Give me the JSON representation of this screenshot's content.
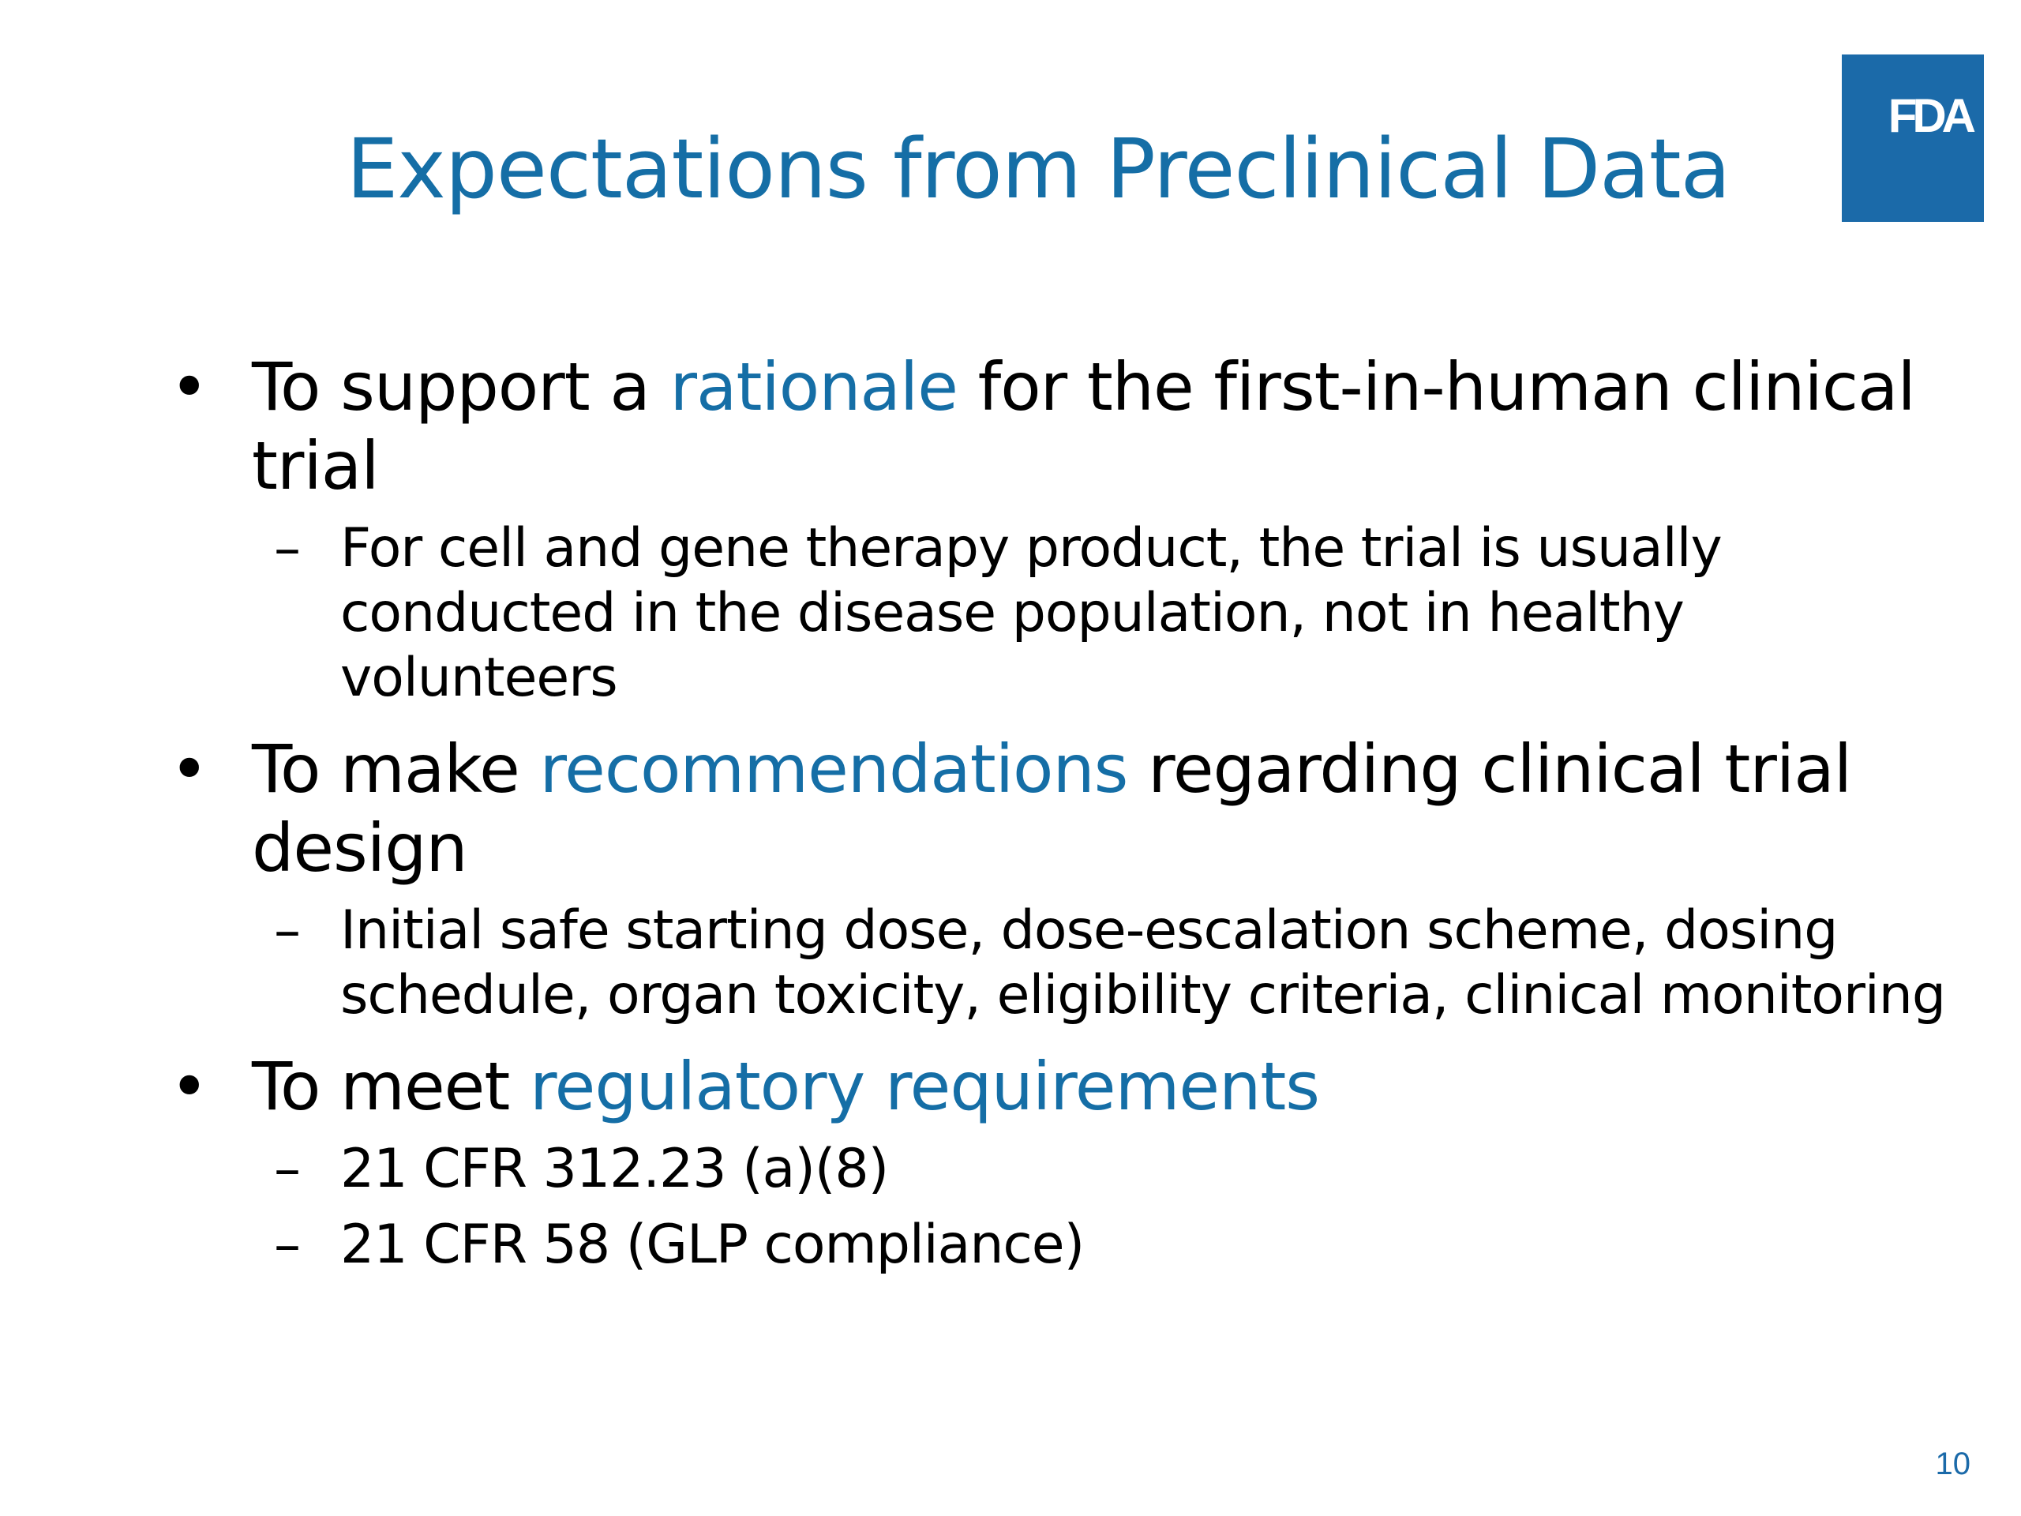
{
  "slide": {
    "title": "Expectations from Preclinical Data",
    "logo_text": "FDA",
    "page_number": "10",
    "bullet_marker": "•",
    "dash_marker": "–",
    "bullets": [
      {
        "pre": "To support a ",
        "highlight": "rationale",
        "post": " for the first-in-human clinical trial",
        "subs": [
          "For cell and gene therapy product, the trial is usually conducted in the disease population, not in healthy volunteers"
        ]
      },
      {
        "pre": "To make ",
        "highlight": "recommendations",
        "post": " regarding clinical trial design",
        "subs": [
          "Initial safe starting dose, dose-escalation scheme, dosing schedule, organ toxicity, eligibility criteria, clinical monitoring"
        ]
      },
      {
        "pre": "To meet ",
        "highlight": "regulatory requirements",
        "post": "",
        "subs": [
          "21 CFR 312.23 (a)(8)",
          "21 CFR 58 (GLP compliance)"
        ]
      }
    ],
    "colors": {
      "accent": "#156ea6",
      "logo_bg": "#1b6aa9",
      "text": "#000000",
      "background": "#ffffff"
    }
  }
}
